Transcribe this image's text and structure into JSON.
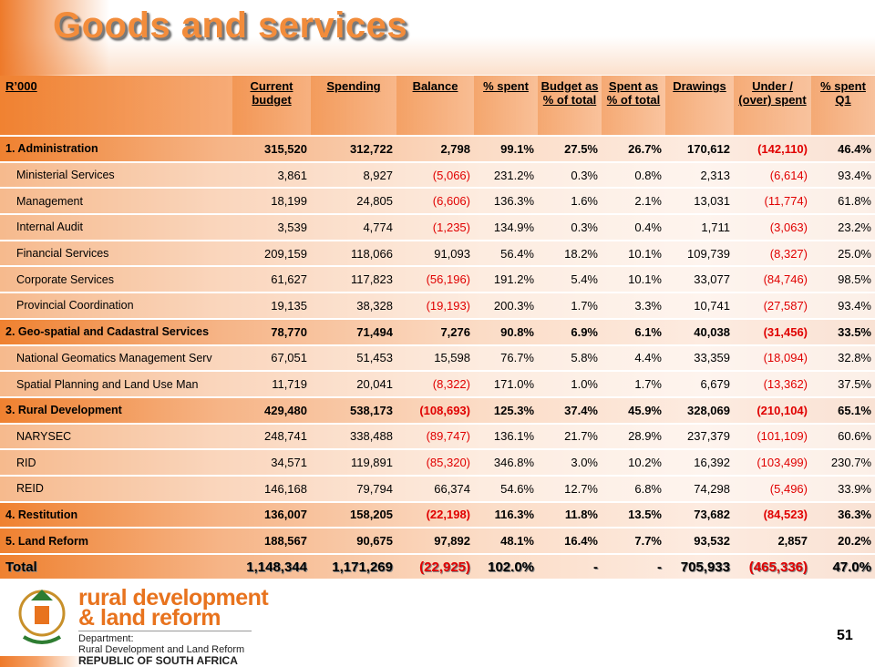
{
  "header": {
    "title": "Goods and services"
  },
  "table": {
    "columns": [
      "R’000",
      "Current budget",
      "Spending",
      "Balance",
      "% spent",
      "Budget as % of total",
      "Spent as % of total",
      "Drawings",
      "Under / (over) spent",
      "% spent Q1"
    ],
    "rows": [
      [
        "1. Administration",
        "315,520",
        "312,722",
        "2,798",
        "99.1%",
        "27.5%",
        "26.7%",
        "170,612",
        "(142,110)",
        "46.4%"
      ],
      [
        "Ministerial Services",
        "3,861",
        "8,927",
        "(5,066)",
        "231.2%",
        "0.3%",
        "0.8%",
        "2,313",
        "(6,614)",
        "93.4%"
      ],
      [
        "Management",
        "18,199",
        "24,805",
        "(6,606)",
        "136.3%",
        "1.6%",
        "2.1%",
        "13,031",
        "(11,774)",
        "61.8%"
      ],
      [
        "Internal Audit",
        "3,539",
        "4,774",
        "(1,235)",
        "134.9%",
        "0.3%",
        "0.4%",
        "1,711",
        "(3,063)",
        "23.2%"
      ],
      [
        "Financial Services",
        "209,159",
        "118,066",
        "91,093",
        "56.4%",
        "18.2%",
        "10.1%",
        "109,739",
        "(8,327)",
        "25.0%"
      ],
      [
        "Corporate Services",
        "61,627",
        "117,823",
        "(56,196)",
        "191.2%",
        "5.4%",
        "10.1%",
        "33,077",
        "(84,746)",
        "98.5%"
      ],
      [
        "Provincial Coordination",
        "19,135",
        "38,328",
        "(19,193)",
        "200.3%",
        "1.7%",
        "3.3%",
        "10,741",
        "(27,587)",
        "93.4%"
      ],
      [
        "2. Geo-spatial and Cadastral Services",
        "78,770",
        "71,494",
        "7,276",
        "90.8%",
        "6.9%",
        "6.1%",
        "40,038",
        "(31,456)",
        "33.5%"
      ],
      [
        "National Geomatics Management Serv",
        "67,051",
        "51,453",
        "15,598",
        "76.7%",
        "5.8%",
        "4.4%",
        "33,359",
        "(18,094)",
        "32.8%"
      ],
      [
        "Spatial Planning and Land Use Man",
        "11,719",
        "20,041",
        "(8,322)",
        "171.0%",
        "1.0%",
        "1.7%",
        "6,679",
        "(13,362)",
        "37.5%"
      ],
      [
        "3. Rural Development",
        "429,480",
        "538,173",
        "(108,693)",
        "125.3%",
        "37.4%",
        "45.9%",
        "328,069",
        "(210,104)",
        "65.1%"
      ],
      [
        "NARYSEC",
        "248,741",
        "338,488",
        "(89,747)",
        "136.1%",
        "21.7%",
        "28.9%",
        "237,379",
        "(101,109)",
        "60.6%"
      ],
      [
        "RID",
        "34,571",
        "119,891",
        "(85,320)",
        "346.8%",
        "3.0%",
        "10.2%",
        "16,392",
        "(103,499)",
        "230.7%"
      ],
      [
        "REID",
        "146,168",
        "79,794",
        "66,374",
        "54.6%",
        "12.7%",
        "6.8%",
        "74,298",
        "(5,496)",
        "33.9%"
      ],
      [
        "4. Restitution",
        "136,007",
        "158,205",
        "(22,198)",
        "116.3%",
        "11.8%",
        "13.5%",
        "73,682",
        "(84,523)",
        "36.3%"
      ],
      [
        "5. Land Reform",
        "188,567",
        "90,675",
        "97,892",
        "48.1%",
        "16.4%",
        "7.7%",
        "93,532",
        "2,857",
        "20.2%"
      ],
      [
        "Total",
        "1,148,344",
        "1,171,269",
        "(22,925)",
        "102.0%",
        "-",
        "-",
        "705,933",
        "(465,336)",
        "47.0%"
      ]
    ]
  },
  "footer": {
    "logo_line1": "rural development",
    "logo_line2": "& land reform",
    "department_label": "Department:",
    "department": "Rural Development and Land Reform",
    "country": "REPUBLIC OF SOUTH AFRICA",
    "page_number": "51"
  }
}
